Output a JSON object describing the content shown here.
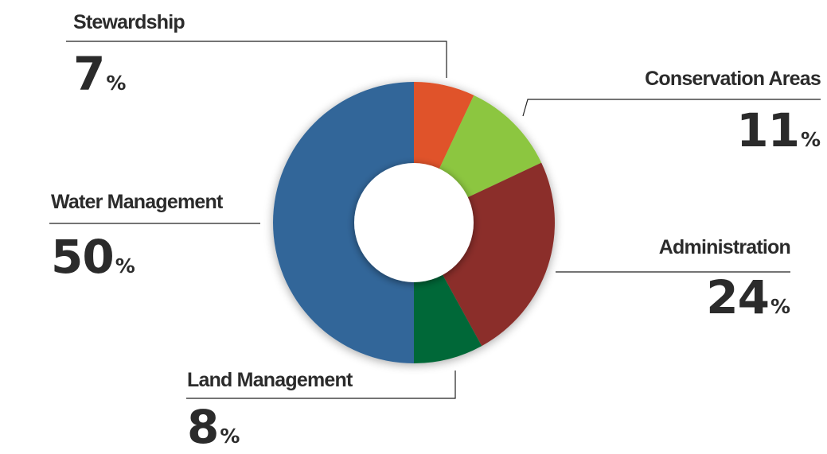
{
  "chart_data": {
    "type": "pie",
    "title": "",
    "categories": [
      "Stewardship",
      "Conservation Areas",
      "Administration",
      "Land Management",
      "Water Management"
    ],
    "values": [
      7,
      11,
      24,
      8,
      50
    ],
    "value_suffix": "%",
    "colors": [
      "#e0522a",
      "#8cc63f",
      "#8b2f2a",
      "#006837",
      "#336699"
    ],
    "donut": true,
    "legend": "callout labels with leader lines"
  },
  "labels": {
    "stewardship": {
      "name": "Stewardship",
      "value": "7",
      "unit": "%"
    },
    "conservation": {
      "name": "Conservation Areas",
      "value": "11",
      "unit": "%"
    },
    "administration": {
      "name": "Administration",
      "value": "24",
      "unit": "%"
    },
    "land": {
      "name": "Land Management",
      "value": "8",
      "unit": "%"
    },
    "water": {
      "name": "Water Management",
      "value": "50",
      "unit": "%"
    }
  }
}
